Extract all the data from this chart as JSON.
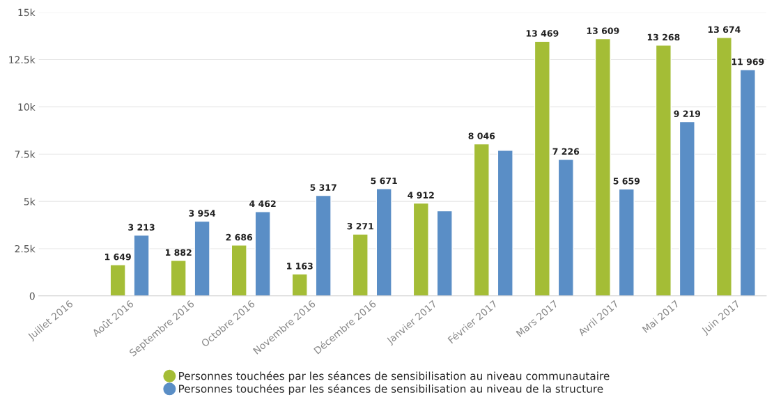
{
  "chart_data": {
    "type": "bar",
    "categories": [
      "Juillet 2016",
      "Août 2016",
      "Septembre 2016",
      "Octobre 2016",
      "Novembre 2016",
      "Décembre 2016",
      "Janvier 2017",
      "Février 2017",
      "Mars 2017",
      "Avril 2017",
      "Mai 2017",
      "Juin 2017"
    ],
    "series": [
      {
        "name": "Personnes touchées par les séances de sensibilisation au niveau communautaire",
        "color": "#a4bd36",
        "values": [
          null,
          1649,
          1882,
          2686,
          1163,
          3271,
          4912,
          8046,
          13469,
          13609,
          13268,
          13674
        ],
        "value_labels": [
          null,
          "1 649",
          "1 882",
          "2 686",
          "1 163",
          "3 271",
          "4 912",
          "8 046",
          "13 469",
          "13 609",
          "13 268",
          "13 674"
        ]
      },
      {
        "name": "Personnes touchées par les séances de sensibilisation au niveau de la structure",
        "color": "#5a8ec6",
        "values": [
          null,
          3213,
          3954,
          4462,
          5317,
          5671,
          4500,
          7700,
          7226,
          5659,
          9219,
          11969
        ],
        "value_labels": [
          null,
          "3 213",
          "3 954",
          "4 462",
          "5 317",
          "5 671",
          null,
          null,
          "7 226",
          "5 659",
          "9 219",
          "11 969"
        ]
      }
    ],
    "ylim": [
      0,
      15000
    ],
    "yticks": [
      0,
      {
        "value": 2500,
        "label": "2.5k"
      },
      {
        "value": 5000,
        "label": "5k"
      },
      {
        "value": 7500,
        "label": "7.5k"
      },
      {
        "value": 10000,
        "label": "10k"
      },
      {
        "value": 12500,
        "label": "12.5k"
      },
      {
        "value": 15000,
        "label": "15k"
      }
    ],
    "grid": "y",
    "legend": "bottom",
    "marker": "circle"
  }
}
